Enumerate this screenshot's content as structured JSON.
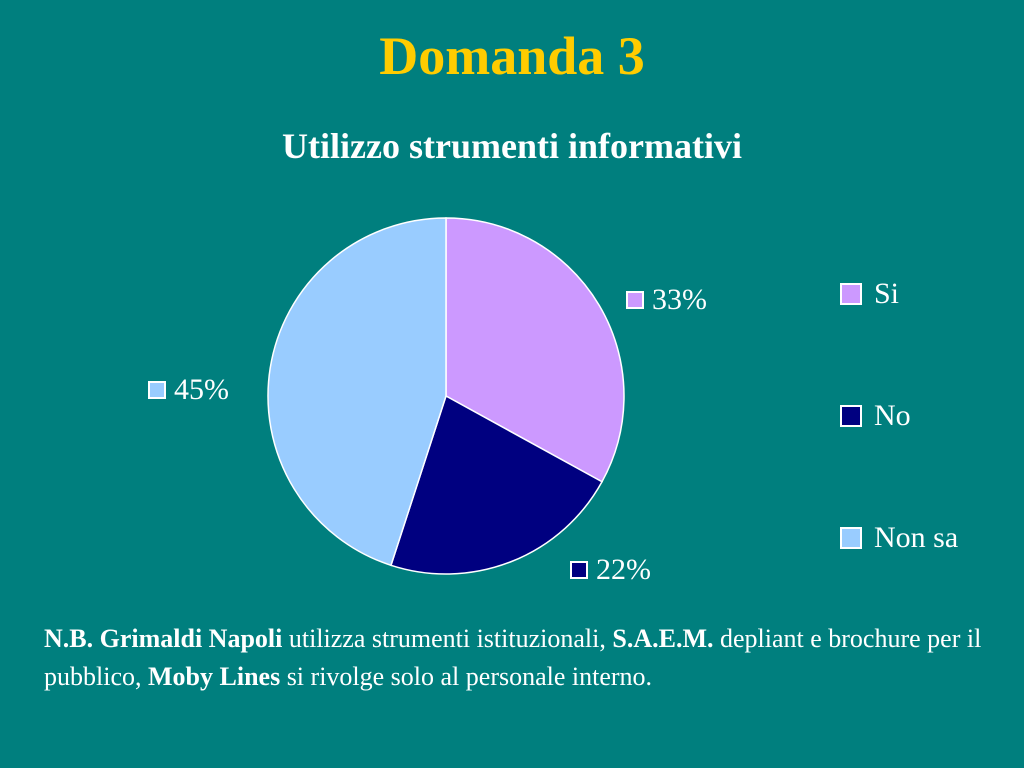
{
  "slide": {
    "title": "Domanda 3",
    "colors": {
      "background": "#007f7e",
      "title": "#ffcc00",
      "text": "#ffffff"
    }
  },
  "chart_data": {
    "type": "pie",
    "title": "Utilizzo strumenti informativi",
    "categories": [
      "Si",
      "No",
      "Non sa"
    ],
    "values": [
      33,
      22,
      45
    ],
    "data_labels": [
      "33%",
      "22%",
      "45%"
    ],
    "colors": [
      "#cc99ff",
      "#000080",
      "#99ccff"
    ],
    "legend_position": "right"
  },
  "note": {
    "part1_bold": "N.B. Grimaldi Napoli",
    "part2": " utilizza strumenti istituzionali, ",
    "part3_bold": "S.A.E.M.",
    "part4": " depliant e brochure per il pubblico, ",
    "part5_bold": "Moby Lines",
    "part6": " si rivolge solo al personale interno."
  }
}
